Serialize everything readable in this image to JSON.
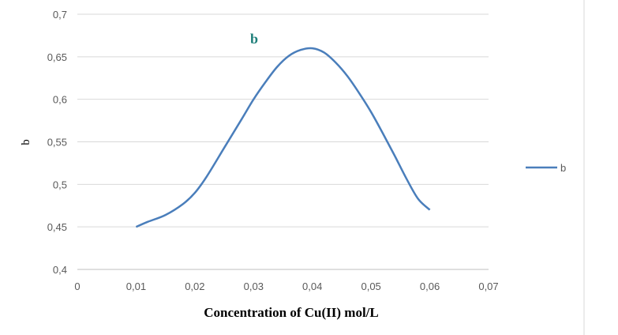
{
  "chart_data": {
    "type": "line",
    "title": "b",
    "xlabel": "Concentration of Cu(II) mol/L",
    "ylabel": "b",
    "xlim": [
      0,
      0.07
    ],
    "ylim": [
      0.4,
      0.7
    ],
    "xticks": [
      0,
      0.01,
      0.02,
      0.03,
      0.04,
      0.05,
      0.06,
      0.07
    ],
    "yticks": [
      0.4,
      0.45,
      0.5,
      0.55,
      0.6,
      0.65,
      0.7
    ],
    "xtick_labels": [
      "0",
      "0,01",
      "0,02",
      "0,03",
      "0,04",
      "0,05",
      "0,06",
      "0,07"
    ],
    "ytick_labels": [
      "0,4",
      "0,45",
      "0,5",
      "0,55",
      "0,6",
      "0,65",
      "0,7"
    ],
    "grid": "horizontal",
    "legend_position": "right",
    "series": [
      {
        "name": "b",
        "color": "#4a7ebb",
        "x": [
          0.01,
          0.012,
          0.015,
          0.018,
          0.02,
          0.022,
          0.025,
          0.028,
          0.03,
          0.032,
          0.034,
          0.036,
          0.038,
          0.04,
          0.042,
          0.044,
          0.046,
          0.048,
          0.05,
          0.052,
          0.054,
          0.056,
          0.058,
          0.06
        ],
        "y": [
          0.45,
          0.456,
          0.464,
          0.477,
          0.49,
          0.509,
          0.543,
          0.577,
          0.6,
          0.62,
          0.638,
          0.651,
          0.658,
          0.66,
          0.655,
          0.643,
          0.627,
          0.607,
          0.585,
          0.56,
          0.534,
          0.507,
          0.483,
          0.47
        ]
      }
    ]
  }
}
